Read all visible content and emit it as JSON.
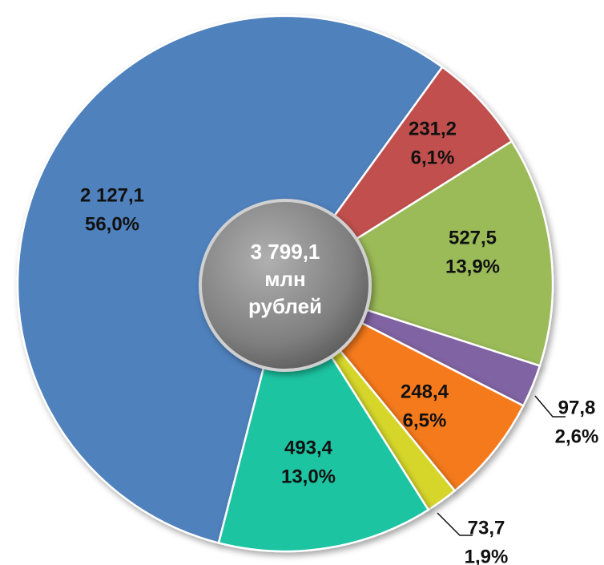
{
  "chart_data": {
    "type": "pie",
    "categories": [
      null,
      null,
      null,
      null,
      null,
      null,
      null
    ],
    "values": [
      2127.1,
      231.2,
      527.5,
      97.8,
      248.4,
      73.7,
      493.4
    ],
    "value_labels": [
      "2 127,1",
      "231,2",
      "527,5",
      "97,8",
      "248,4",
      "73,7",
      "493,4"
    ],
    "percents": [
      56.0,
      6.1,
      13.9,
      2.6,
      6.5,
      1.9,
      13.0
    ],
    "percent_labels": [
      "56,0%",
      "6,1%",
      "13,9%",
      "2,6%",
      "6,5%",
      "1,9%",
      "13,0%"
    ],
    "colors": [
      "#4f81bd",
      "#c0504d",
      "#9bbb59",
      "#8064a2",
      "#f57a1f",
      "#d6d62c",
      "#1cc4a2"
    ],
    "center_label": [
      "3 799,1",
      "млн",
      "рублей"
    ]
  }
}
